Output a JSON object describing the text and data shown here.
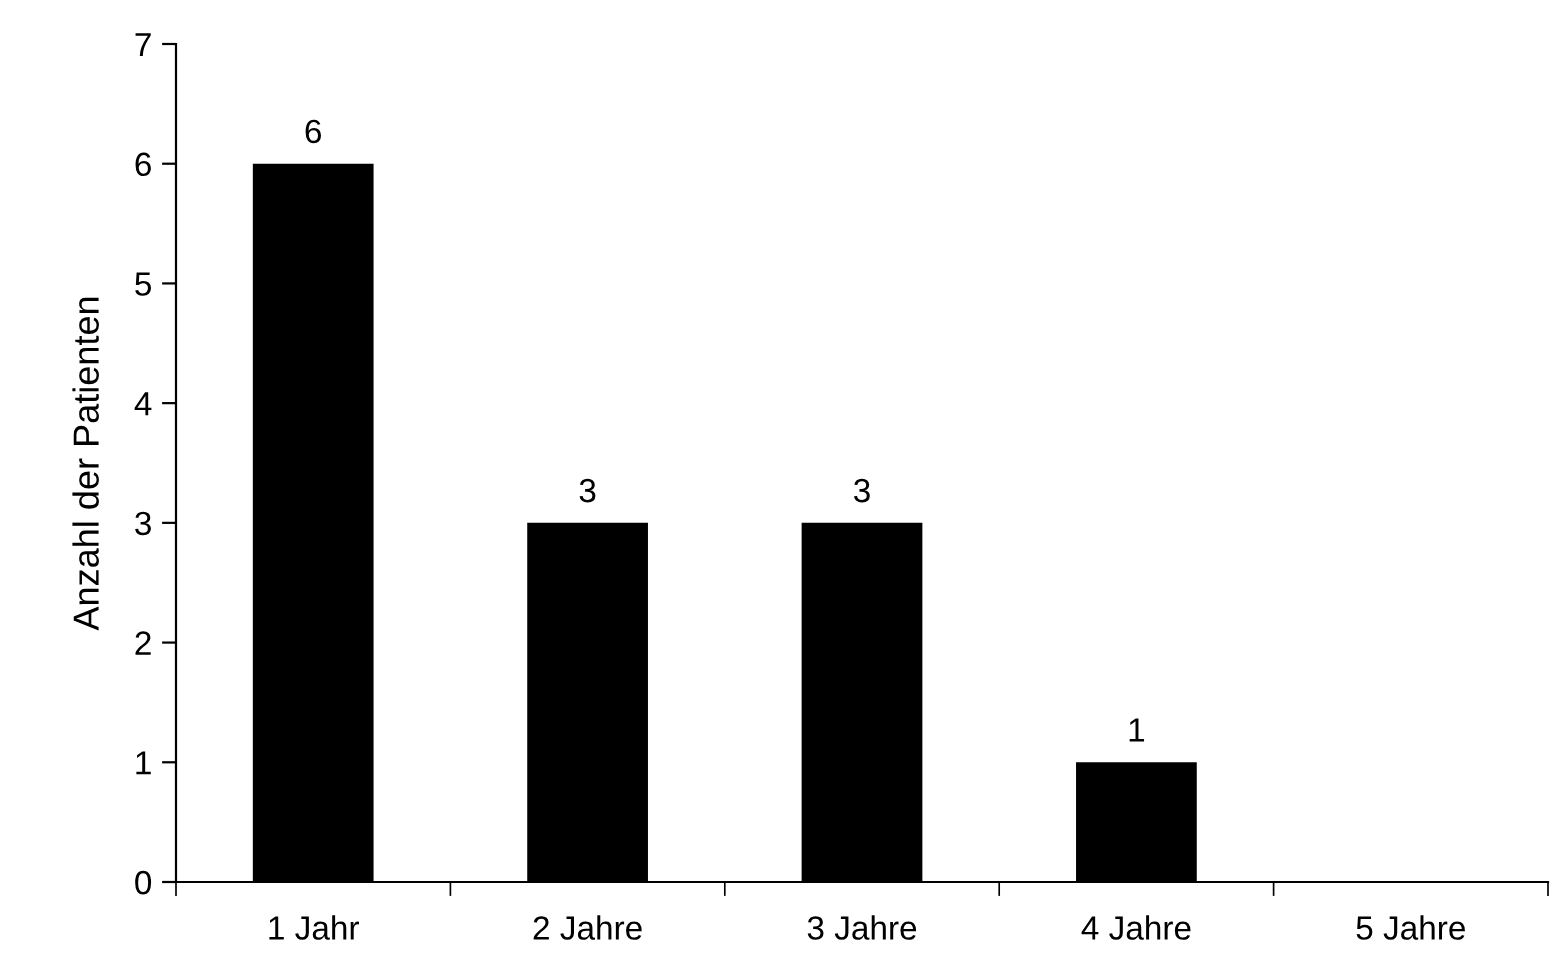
{
  "chart_data": {
    "type": "bar",
    "ylabel": "Anzahl der Patienten",
    "categories": [
      "1 Jahr",
      "2 Jahre",
      "3 Jahre",
      "4 Jahre",
      "5 Jahre"
    ],
    "values": [
      6,
      3,
      3,
      1,
      0
    ],
    "color": "#000000",
    "value_labels": [
      "6",
      "3",
      "3",
      "1",
      null
    ],
    "ylim": [
      0,
      7
    ],
    "yticks": [
      0,
      1,
      2,
      3,
      4,
      5,
      6,
      7
    ],
    "grid": false
  }
}
